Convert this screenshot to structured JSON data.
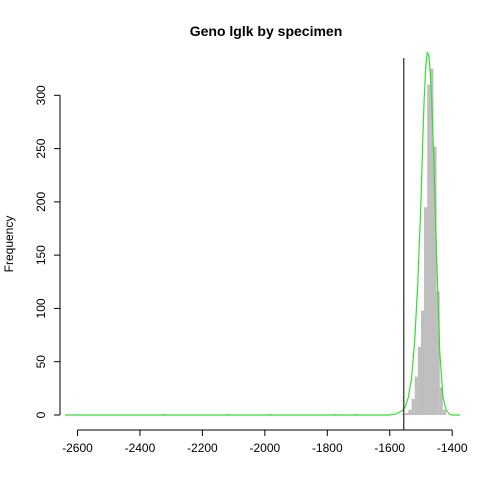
{
  "chart_data": {
    "type": "bar",
    "title": "Geno lglk by specimen",
    "xlabel": "",
    "ylabel": "Frequency",
    "xlim": [
      -2640,
      -1375
    ],
    "ylim": [
      0,
      335
    ],
    "x_ticks": [
      -2600,
      -2400,
      -2200,
      -2000,
      -1800,
      -1600,
      -1400
    ],
    "y_ticks": [
      0,
      50,
      100,
      150,
      200,
      250,
      300
    ],
    "bin_width": 10,
    "bins": [
      {
        "start": -1560,
        "count": 1
      },
      {
        "start": -1550,
        "count": 2
      },
      {
        "start": -1540,
        "count": 5
      },
      {
        "start": -1530,
        "count": 15
      },
      {
        "start": -1520,
        "count": 36
      },
      {
        "start": -1510,
        "count": 64
      },
      {
        "start": -1500,
        "count": 98
      },
      {
        "start": -1490,
        "count": 195
      },
      {
        "start": -1480,
        "count": 310
      },
      {
        "start": -1470,
        "count": 325
      },
      {
        "start": -1460,
        "count": 252
      },
      {
        "start": -1450,
        "count": 116
      },
      {
        "start": -1440,
        "count": 26
      },
      {
        "start": -1430,
        "count": 5
      }
    ],
    "outlier_bins": [
      {
        "start": -2330,
        "count": 1
      },
      {
        "start": -2120,
        "count": 1
      },
      {
        "start": -1990,
        "count": 1
      },
      {
        "start": -1780,
        "count": 1
      },
      {
        "start": -1710,
        "count": 1
      }
    ],
    "density_curve": {
      "color": "#33dd33",
      "x": [
        -2640,
        -1700,
        -1600,
        -1580,
        -1560,
        -1550,
        -1540,
        -1530,
        -1520,
        -1510,
        -1500,
        -1495,
        -1490,
        -1485,
        -1480,
        -1475,
        -1470,
        -1465,
        -1460,
        -1450,
        -1440,
        -1430,
        -1420,
        -1410,
        -1400,
        -1375
      ],
      "y": [
        0,
        0,
        0,
        1,
        4,
        8,
        17,
        35,
        70,
        125,
        200,
        250,
        295,
        325,
        340,
        338,
        320,
        290,
        250,
        150,
        60,
        18,
        5,
        1,
        0,
        0
      ]
    },
    "vline": {
      "x": -1555,
      "color": "#000000"
    },
    "bar_color": "#bebebe",
    "grid": false
  }
}
